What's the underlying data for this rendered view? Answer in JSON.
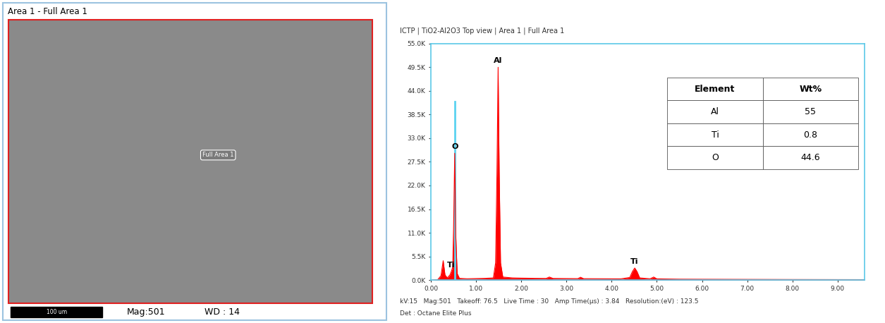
{
  "sem_image": {
    "header": "Area 1 - Full Area 1",
    "region_label": "Full Area 1",
    "scale_bar": "100 um",
    "magnification": "Mag:501",
    "working_distance": "WD : 14"
  },
  "chart_data": {
    "type": "line",
    "title": "ICTP | TiO2-Al2O3 Top view | Area 1 | Full Area 1",
    "x": [
      0.0,
      0.15,
      0.22,
      0.27,
      0.31,
      0.36,
      0.42,
      0.45,
      0.48,
      0.5,
      0.525,
      0.55,
      0.58,
      0.63,
      0.8,
      1.0,
      1.2,
      1.38,
      1.43,
      1.46,
      1.486,
      1.51,
      1.54,
      1.59,
      1.8,
      2.0,
      2.3,
      2.55,
      2.62,
      2.7,
      3.0,
      3.25,
      3.31,
      3.38,
      3.8,
      4.2,
      4.4,
      4.46,
      4.51,
      4.56,
      4.62,
      4.85,
      4.93,
      5.0,
      5.5,
      6.0,
      7.0,
      8.0,
      9.0,
      9.6
    ],
    "values": [
      0,
      100,
      1000,
      4500,
      1200,
      500,
      1200,
      2000,
      3000,
      12000,
      29500,
      10000,
      1500,
      400,
      300,
      350,
      400,
      500,
      4000,
      25000,
      49500,
      25000,
      4000,
      700,
      500,
      450,
      400,
      380,
      700,
      380,
      350,
      330,
      650,
      320,
      300,
      280,
      600,
      2000,
      2800,
      2000,
      500,
      300,
      700,
      280,
      200,
      180,
      150,
      120,
      100,
      90
    ],
    "color": "#ff0000",
    "xlim": [
      0,
      9.6
    ],
    "xticks": [
      {
        "value": 0,
        "label": "0.00"
      },
      {
        "value": 1,
        "label": "1.00"
      },
      {
        "value": 2,
        "label": "2.00"
      },
      {
        "value": 3,
        "label": "3.00"
      },
      {
        "value": 4,
        "label": "4.00"
      },
      {
        "value": 5,
        "label": "5.00"
      },
      {
        "value": 6,
        "label": "6.00"
      },
      {
        "value": 7,
        "label": "7.00"
      },
      {
        "value": 8,
        "label": "8.00"
      },
      {
        "value": 9,
        "label": "9.00"
      }
    ],
    "ylim": [
      0,
      55000
    ],
    "yticks": [
      {
        "value": 0,
        "label": "0.0K"
      },
      {
        "value": 5500,
        "label": "5.5K"
      },
      {
        "value": 11000,
        "label": "11.0K"
      },
      {
        "value": 16500,
        "label": "16.5K"
      },
      {
        "value": 22000,
        "label": "22.0K"
      },
      {
        "value": 27500,
        "label": "27.5K"
      },
      {
        "value": 33000,
        "label": "33.0K"
      },
      {
        "value": 38500,
        "label": "38.5K"
      },
      {
        "value": 44000,
        "label": "44.0K"
      },
      {
        "value": 49500,
        "label": "49.5K"
      },
      {
        "value": 55000,
        "label": "55.0K"
      }
    ],
    "grid": false,
    "annotations": [
      {
        "text": "Ti",
        "x": 0.45
      },
      {
        "text": "O",
        "x": 0.525
      },
      {
        "text": "Al",
        "x": 1.486
      },
      {
        "text": "Ti",
        "x": 4.51
      }
    ],
    "marker_line": {
      "x": 0.525,
      "top": 41500
    },
    "table": {
      "columns": [
        "Element",
        "Wt%"
      ],
      "rows": [
        [
          "Al",
          55
        ],
        [
          "Ti",
          0.8
        ],
        [
          "O",
          44.6
        ]
      ]
    },
    "footer": [
      "kV:15   Mag:501   Takeoff: 76.5   Live Time : 30   Amp Time(µs) : 3.84   Resolution:(eV) : 123.5",
      "Det : Octane Elite Plus"
    ]
  }
}
